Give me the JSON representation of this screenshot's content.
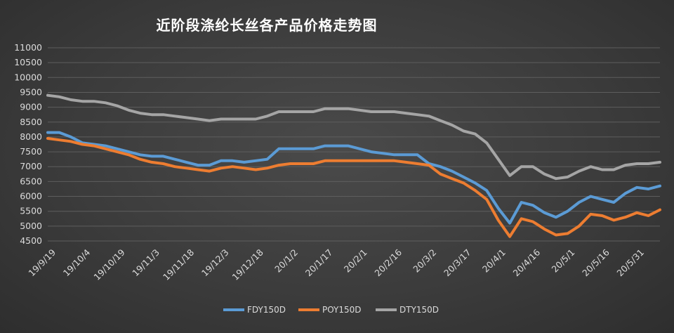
{
  "chart_data": {
    "type": "line",
    "title": "近阶段涤纶长丝各产品价格走势图",
    "xlabel": "",
    "ylabel": "",
    "ylim": [
      4500,
      11000
    ],
    "yticks": [
      4500,
      5000,
      5500,
      6000,
      6500,
      7000,
      7500,
      8000,
      8500,
      9000,
      9500,
      10000,
      10500,
      11000
    ],
    "x_tick_labels": [
      "19/9/19",
      "19/10/4",
      "19/10/19",
      "19/11/3",
      "19/11/18",
      "19/12/3",
      "19/12/18",
      "20/1/2",
      "20/1/17",
      "20/2/1",
      "20/2/16",
      "20/3/2",
      "20/3/17",
      "20/4/1",
      "20/4/16",
      "20/5/1",
      "20/5/16",
      "20/5/31"
    ],
    "grid": true,
    "legend_position": "bottom",
    "series": [
      {
        "name": "FDY150D",
        "color": "#5b9bd5",
        "values": [
          8150,
          8150,
          8000,
          7800,
          7750,
          7700,
          7600,
          7500,
          7400,
          7350,
          7350,
          7250,
          7150,
          7050,
          7050,
          7200,
          7200,
          7150,
          7200,
          7250,
          7600,
          7600,
          7600,
          7600,
          7700,
          7700,
          7700,
          7600,
          7500,
          7450,
          7400,
          7400,
          7400,
          7100,
          7000,
          6850,
          6650,
          6450,
          6200,
          5600,
          5100,
          5800,
          5700,
          5450,
          5300,
          5500,
          5800,
          6000,
          5900,
          5800,
          6100,
          6300,
          6250,
          6350
        ]
      },
      {
        "name": "POY150D",
        "color": "#ed7d31",
        "values": [
          7950,
          7900,
          7850,
          7750,
          7700,
          7600,
          7500,
          7400,
          7250,
          7150,
          7100,
          7000,
          6950,
          6900,
          6850,
          6950,
          7000,
          6950,
          6900,
          6950,
          7050,
          7100,
          7100,
          7100,
          7200,
          7200,
          7200,
          7200,
          7200,
          7200,
          7200,
          7150,
          7100,
          7050,
          6750,
          6600,
          6450,
          6200,
          5900,
          5200,
          4650,
          5250,
          5150,
          4900,
          4700,
          4750,
          5000,
          5400,
          5350,
          5200,
          5300,
          5450,
          5350,
          5550
        ]
      },
      {
        "name": "DTY150D",
        "color": "#a5a5a5",
        "values": [
          9400,
          9350,
          9250,
          9200,
          9200,
          9150,
          9050,
          8900,
          8800,
          8750,
          8750,
          8700,
          8650,
          8600,
          8550,
          8600,
          8600,
          8600,
          8600,
          8700,
          8850,
          8850,
          8850,
          8850,
          8950,
          8950,
          8950,
          8900,
          8850,
          8850,
          8850,
          8800,
          8750,
          8700,
          8550,
          8400,
          8200,
          8100,
          7800,
          7250,
          6700,
          7000,
          7000,
          6750,
          6600,
          6650,
          6850,
          7000,
          6900,
          6900,
          7050,
          7100,
          7100,
          7150
        ]
      }
    ]
  }
}
